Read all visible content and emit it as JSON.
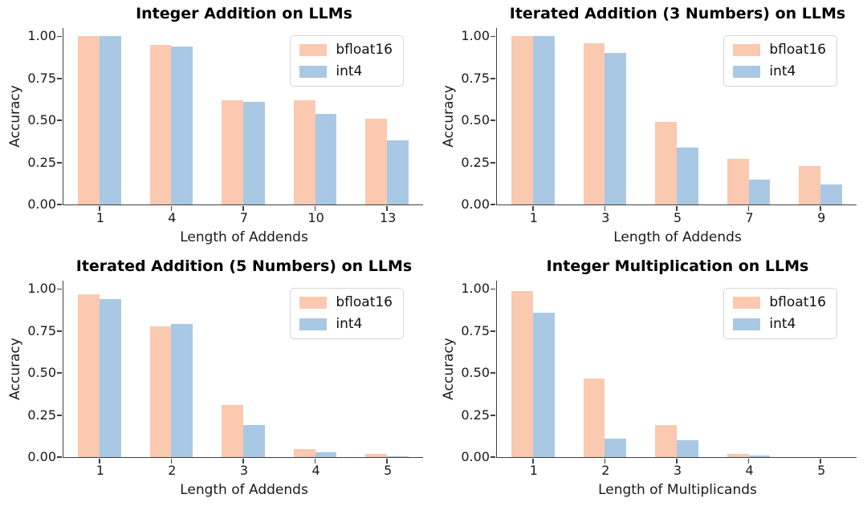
{
  "figure": {
    "background": "#ffffff",
    "axis_color": "#3f3f3f",
    "text_color": "#1a1a1a",
    "legend_border_color": "#d5d5d5",
    "series_colors": {
      "bfloat16": "#fac9b0",
      "int4": "#a9c8e3"
    }
  },
  "chart_data": [
    {
      "type": "bar",
      "title": "Integer Addition on LLMs",
      "xlabel": "Length of Addends",
      "ylabel": "Accuracy",
      "categories": [
        "1",
        "4",
        "7",
        "10",
        "13"
      ],
      "series": [
        {
          "name": "bfloat16",
          "color": "#fac9b0",
          "values": [
            1.0,
            0.95,
            0.62,
            0.62,
            0.51
          ]
        },
        {
          "name": "int4",
          "color": "#a9c8e3",
          "values": [
            1.0,
            0.94,
            0.61,
            0.54,
            0.38
          ]
        }
      ],
      "ylim": [
        0,
        1.05
      ],
      "yticks": [
        0,
        0.25,
        0.5,
        0.75,
        1.0
      ],
      "ytick_labels": [
        "0.00",
        "0.25",
        "0.50",
        "0.75",
        "1.00"
      ],
      "legend_position": "upper right",
      "grid": false
    },
    {
      "type": "bar",
      "title": "Iterated Addition (3 Numbers) on LLMs",
      "xlabel": "Length of Addends",
      "ylabel": "Accuracy",
      "categories": [
        "1",
        "3",
        "5",
        "7",
        "9"
      ],
      "series": [
        {
          "name": "bfloat16",
          "color": "#fac9b0",
          "values": [
            1.0,
            0.96,
            0.49,
            0.27,
            0.23
          ]
        },
        {
          "name": "int4",
          "color": "#a9c8e3",
          "values": [
            1.0,
            0.9,
            0.34,
            0.15,
            0.12
          ]
        }
      ],
      "ylim": [
        0,
        1.05
      ],
      "yticks": [
        0,
        0.25,
        0.5,
        0.75,
        1.0
      ],
      "ytick_labels": [
        "0.00",
        "0.25",
        "0.50",
        "0.75",
        "1.00"
      ],
      "legend_position": "upper right",
      "grid": false
    },
    {
      "type": "bar",
      "title": "Iterated Addition (5 Numbers) on LLMs",
      "xlabel": "Length of Addends",
      "ylabel": "Accuracy",
      "categories": [
        "1",
        "2",
        "3",
        "4",
        "5"
      ],
      "series": [
        {
          "name": "bfloat16",
          "color": "#fac9b0",
          "values": [
            0.97,
            0.78,
            0.31,
            0.05,
            0.02
          ]
        },
        {
          "name": "int4",
          "color": "#a9c8e3",
          "values": [
            0.94,
            0.79,
            0.19,
            0.03,
            0.005
          ]
        }
      ],
      "ylim": [
        0,
        1.05
      ],
      "yticks": [
        0,
        0.25,
        0.5,
        0.75,
        1.0
      ],
      "ytick_labels": [
        "0.00",
        "0.25",
        "0.50",
        "0.75",
        "1.00"
      ],
      "legend_position": "upper right",
      "grid": false
    },
    {
      "type": "bar",
      "title": "Integer Multiplication on LLMs",
      "xlabel": "Length of Multiplicands",
      "ylabel": "Accuracy",
      "categories": [
        "1",
        "2",
        "3",
        "4",
        "5"
      ],
      "series": [
        {
          "name": "bfloat16",
          "color": "#fac9b0",
          "values": [
            0.99,
            0.47,
            0.19,
            0.02,
            0.0
          ]
        },
        {
          "name": "int4",
          "color": "#a9c8e3",
          "values": [
            0.86,
            0.11,
            0.1,
            0.01,
            0.0
          ]
        }
      ],
      "ylim": [
        0,
        1.05
      ],
      "yticks": [
        0,
        0.25,
        0.5,
        0.75,
        1.0
      ],
      "ytick_labels": [
        "0.00",
        "0.25",
        "0.50",
        "0.75",
        "1.00"
      ],
      "legend_position": "upper right",
      "grid": false
    }
  ]
}
